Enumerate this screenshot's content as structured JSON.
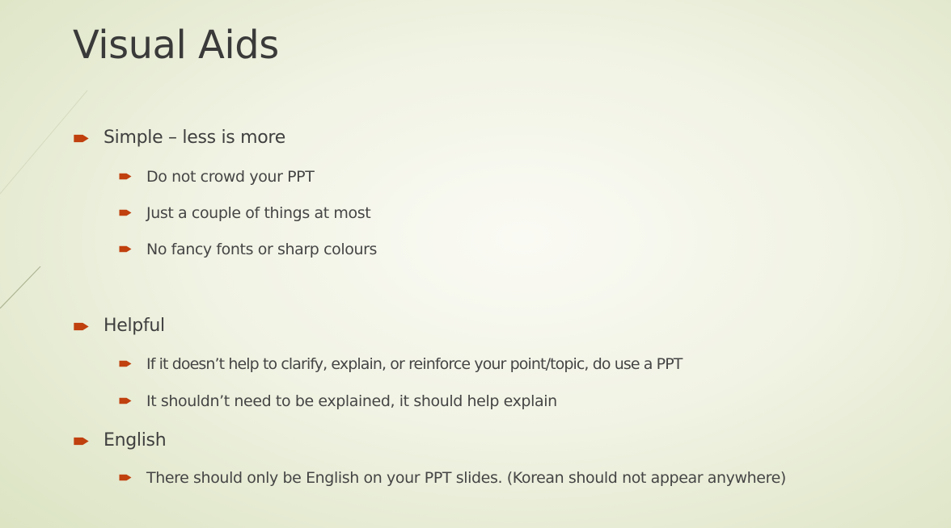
{
  "slide": {
    "title": "Visual Aids",
    "accent_color": "#c0400e",
    "sections": [
      {
        "heading": "Simple – less is more",
        "items": [
          "Do not crowd your PPT",
          "Just a couple of things at most",
          "No fancy fonts or sharp colours"
        ]
      },
      {
        "heading": "Helpful",
        "items": [
          "If it doesn’t help to clarify, explain, or reinforce your point/topic, do use a PPT",
          "It shouldn’t need to be explained, it should help explain"
        ]
      },
      {
        "heading": "English",
        "items": [
          "There should only be English on your PPT slides. (Korean should not appear anywhere)"
        ]
      }
    ]
  }
}
